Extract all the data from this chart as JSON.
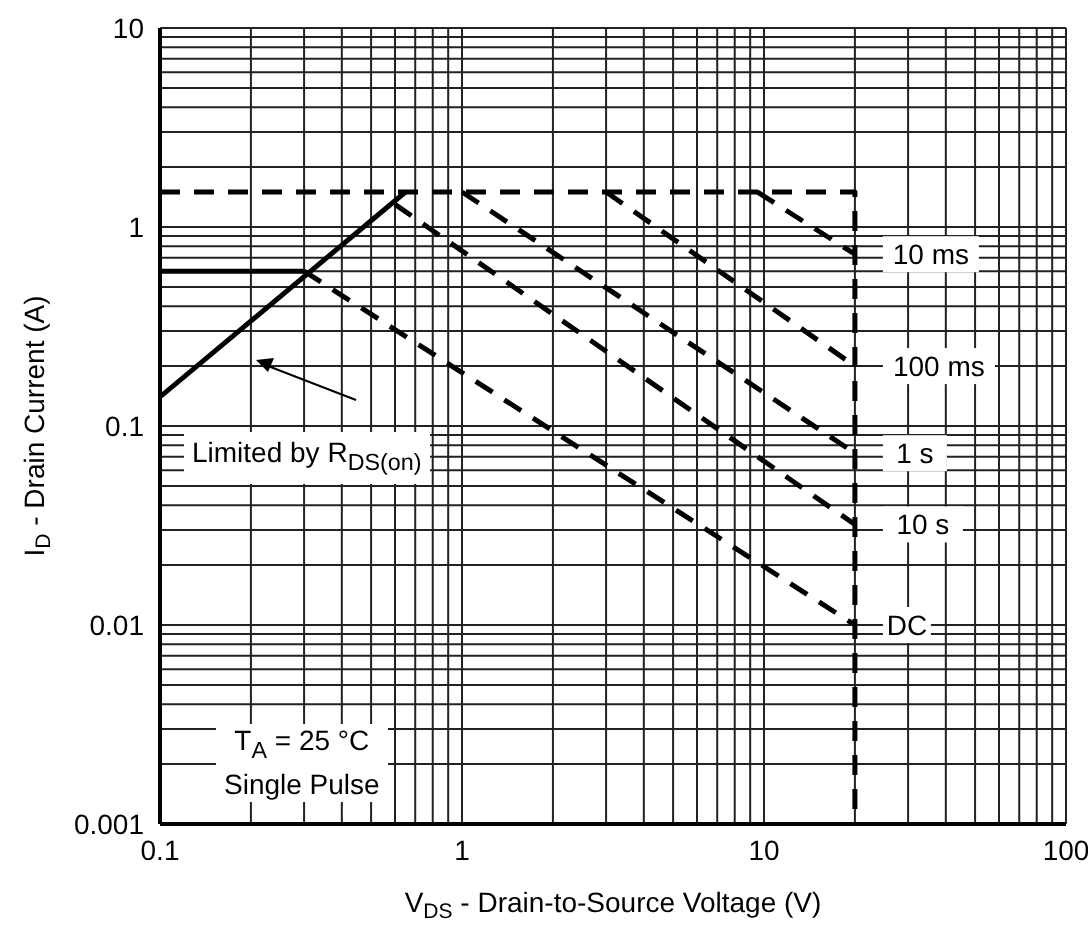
{
  "chart_data": {
    "type": "line",
    "xlabel": "V$_{DS}$ - Drain-to-Source Voltage (V)",
    "ylabel": "I$_{D}$ - Drain Current (A)",
    "log": "xy",
    "grid": true,
    "xlim": [
      0.1,
      100
    ],
    "ylim": [
      0.001,
      10
    ],
    "xticks": [
      0.1,
      {
        "value": 0.2,
        "label": null
      },
      {
        "value": 0.3,
        "label": null
      },
      {
        "value": 0.4,
        "label": null
      },
      {
        "value": 0.5,
        "label": null
      },
      {
        "value": 0.6,
        "label": null
      },
      {
        "value": 0.7,
        "label": null
      },
      {
        "value": 0.8,
        "label": null
      },
      {
        "value": 0.9,
        "label": null
      },
      1,
      {
        "value": 2,
        "label": null
      },
      {
        "value": 3,
        "label": null
      },
      {
        "value": 4,
        "label": null
      },
      {
        "value": 5,
        "label": null
      },
      {
        "value": 6,
        "label": null
      },
      {
        "value": 7,
        "label": null
      },
      {
        "value": 8,
        "label": null
      },
      {
        "value": 9,
        "label": null
      },
      10,
      {
        "value": 20,
        "label": null
      },
      {
        "value": 30,
        "label": null
      },
      {
        "value": 40,
        "label": null
      },
      {
        "value": 50,
        "label": null
      },
      {
        "value": 60,
        "label": null
      },
      {
        "value": 70,
        "label": null
      },
      {
        "value": 80,
        "label": null
      },
      {
        "value": 90,
        "label": null
      },
      100
    ],
    "yticks": [
      0.001,
      {
        "value": 0.002,
        "label": null
      },
      {
        "value": 0.003,
        "label": null
      },
      {
        "value": 0.004,
        "label": null
      },
      {
        "value": 0.005,
        "label": null
      },
      {
        "value": 0.006,
        "label": null
      },
      {
        "value": 0.007,
        "label": null
      },
      {
        "value": 0.008,
        "label": null
      },
      {
        "value": 0.009,
        "label": null
      },
      0.01,
      {
        "value": 0.02,
        "label": null
      },
      {
        "value": 0.03,
        "label": null
      },
      {
        "value": 0.04,
        "label": null
      },
      {
        "value": 0.05,
        "label": null
      },
      {
        "value": 0.06,
        "label": null
      },
      {
        "value": 0.07,
        "label": null
      },
      {
        "value": 0.08,
        "label": null
      },
      {
        "value": 0.09,
        "label": null
      },
      0.1,
      {
        "value": 0.2,
        "label": null
      },
      {
        "value": 0.3,
        "label": null
      },
      {
        "value": 0.4,
        "label": null
      },
      {
        "value": 0.5,
        "label": null
      },
      {
        "value": 0.6,
        "label": null
      },
      {
        "value": 0.7,
        "label": null
      },
      {
        "value": 0.8,
        "label": null
      },
      {
        "value": 0.9,
        "label": null
      },
      1,
      {
        "value": 2,
        "label": null
      },
      {
        "value": 3,
        "label": null
      },
      {
        "value": 4,
        "label": null
      },
      {
        "value": 5,
        "label": null
      },
      {
        "value": 6,
        "label": null
      },
      {
        "value": 7,
        "label": null
      },
      {
        "value": 8,
        "label": null
      },
      {
        "value": 9,
        "label": null
      },
      10
    ],
    "series": [
      {
        "color": "#000000",
        "line_style": "dashed",
        "x": [
          0.1,
          20,
          20
        ],
        "values": [
          1.5,
          1.5,
          0.001
        ]
      },
      {
        "color": "#000000",
        "line_style": "solid",
        "x": [
          0.1,
          0.65
        ],
        "values": [
          0.14,
          1.5
        ]
      },
      {
        "color": "#000000",
        "line_style": "solid",
        "x": [
          0.1,
          0.3
        ],
        "values": [
          0.6,
          0.6
        ]
      },
      {
        "name": "10 ms",
        "color": "#000000",
        "line_style": "dashed",
        "x": [
          9.5,
          20
        ],
        "values": [
          1.5,
          0.73
        ]
      },
      {
        "name": "100 ms",
        "color": "#000000",
        "line_style": "dashed",
        "x": [
          3,
          20
        ],
        "values": [
          1.5,
          0.2
        ]
      },
      {
        "name": "1 s",
        "color": "#000000",
        "line_style": "dashed",
        "x": [
          1,
          20
        ],
        "values": [
          1.5,
          0.073
        ]
      },
      {
        "name": "10 s",
        "color": "#000000",
        "line_style": "dashed",
        "x": [
          0.6,
          20
        ],
        "values": [
          1.3,
          0.032
        ]
      },
      {
        "name": "DC",
        "color": "#000000",
        "line_style": "dashed",
        "x": [
          0.3,
          20
        ],
        "values": [
          0.6,
          0.01
        ]
      }
    ],
    "annotations": [
      "Limited by R$_{DS(on)}$",
      "T$_{A}$ = 25 °C",
      "Single Pulse"
    ]
  }
}
